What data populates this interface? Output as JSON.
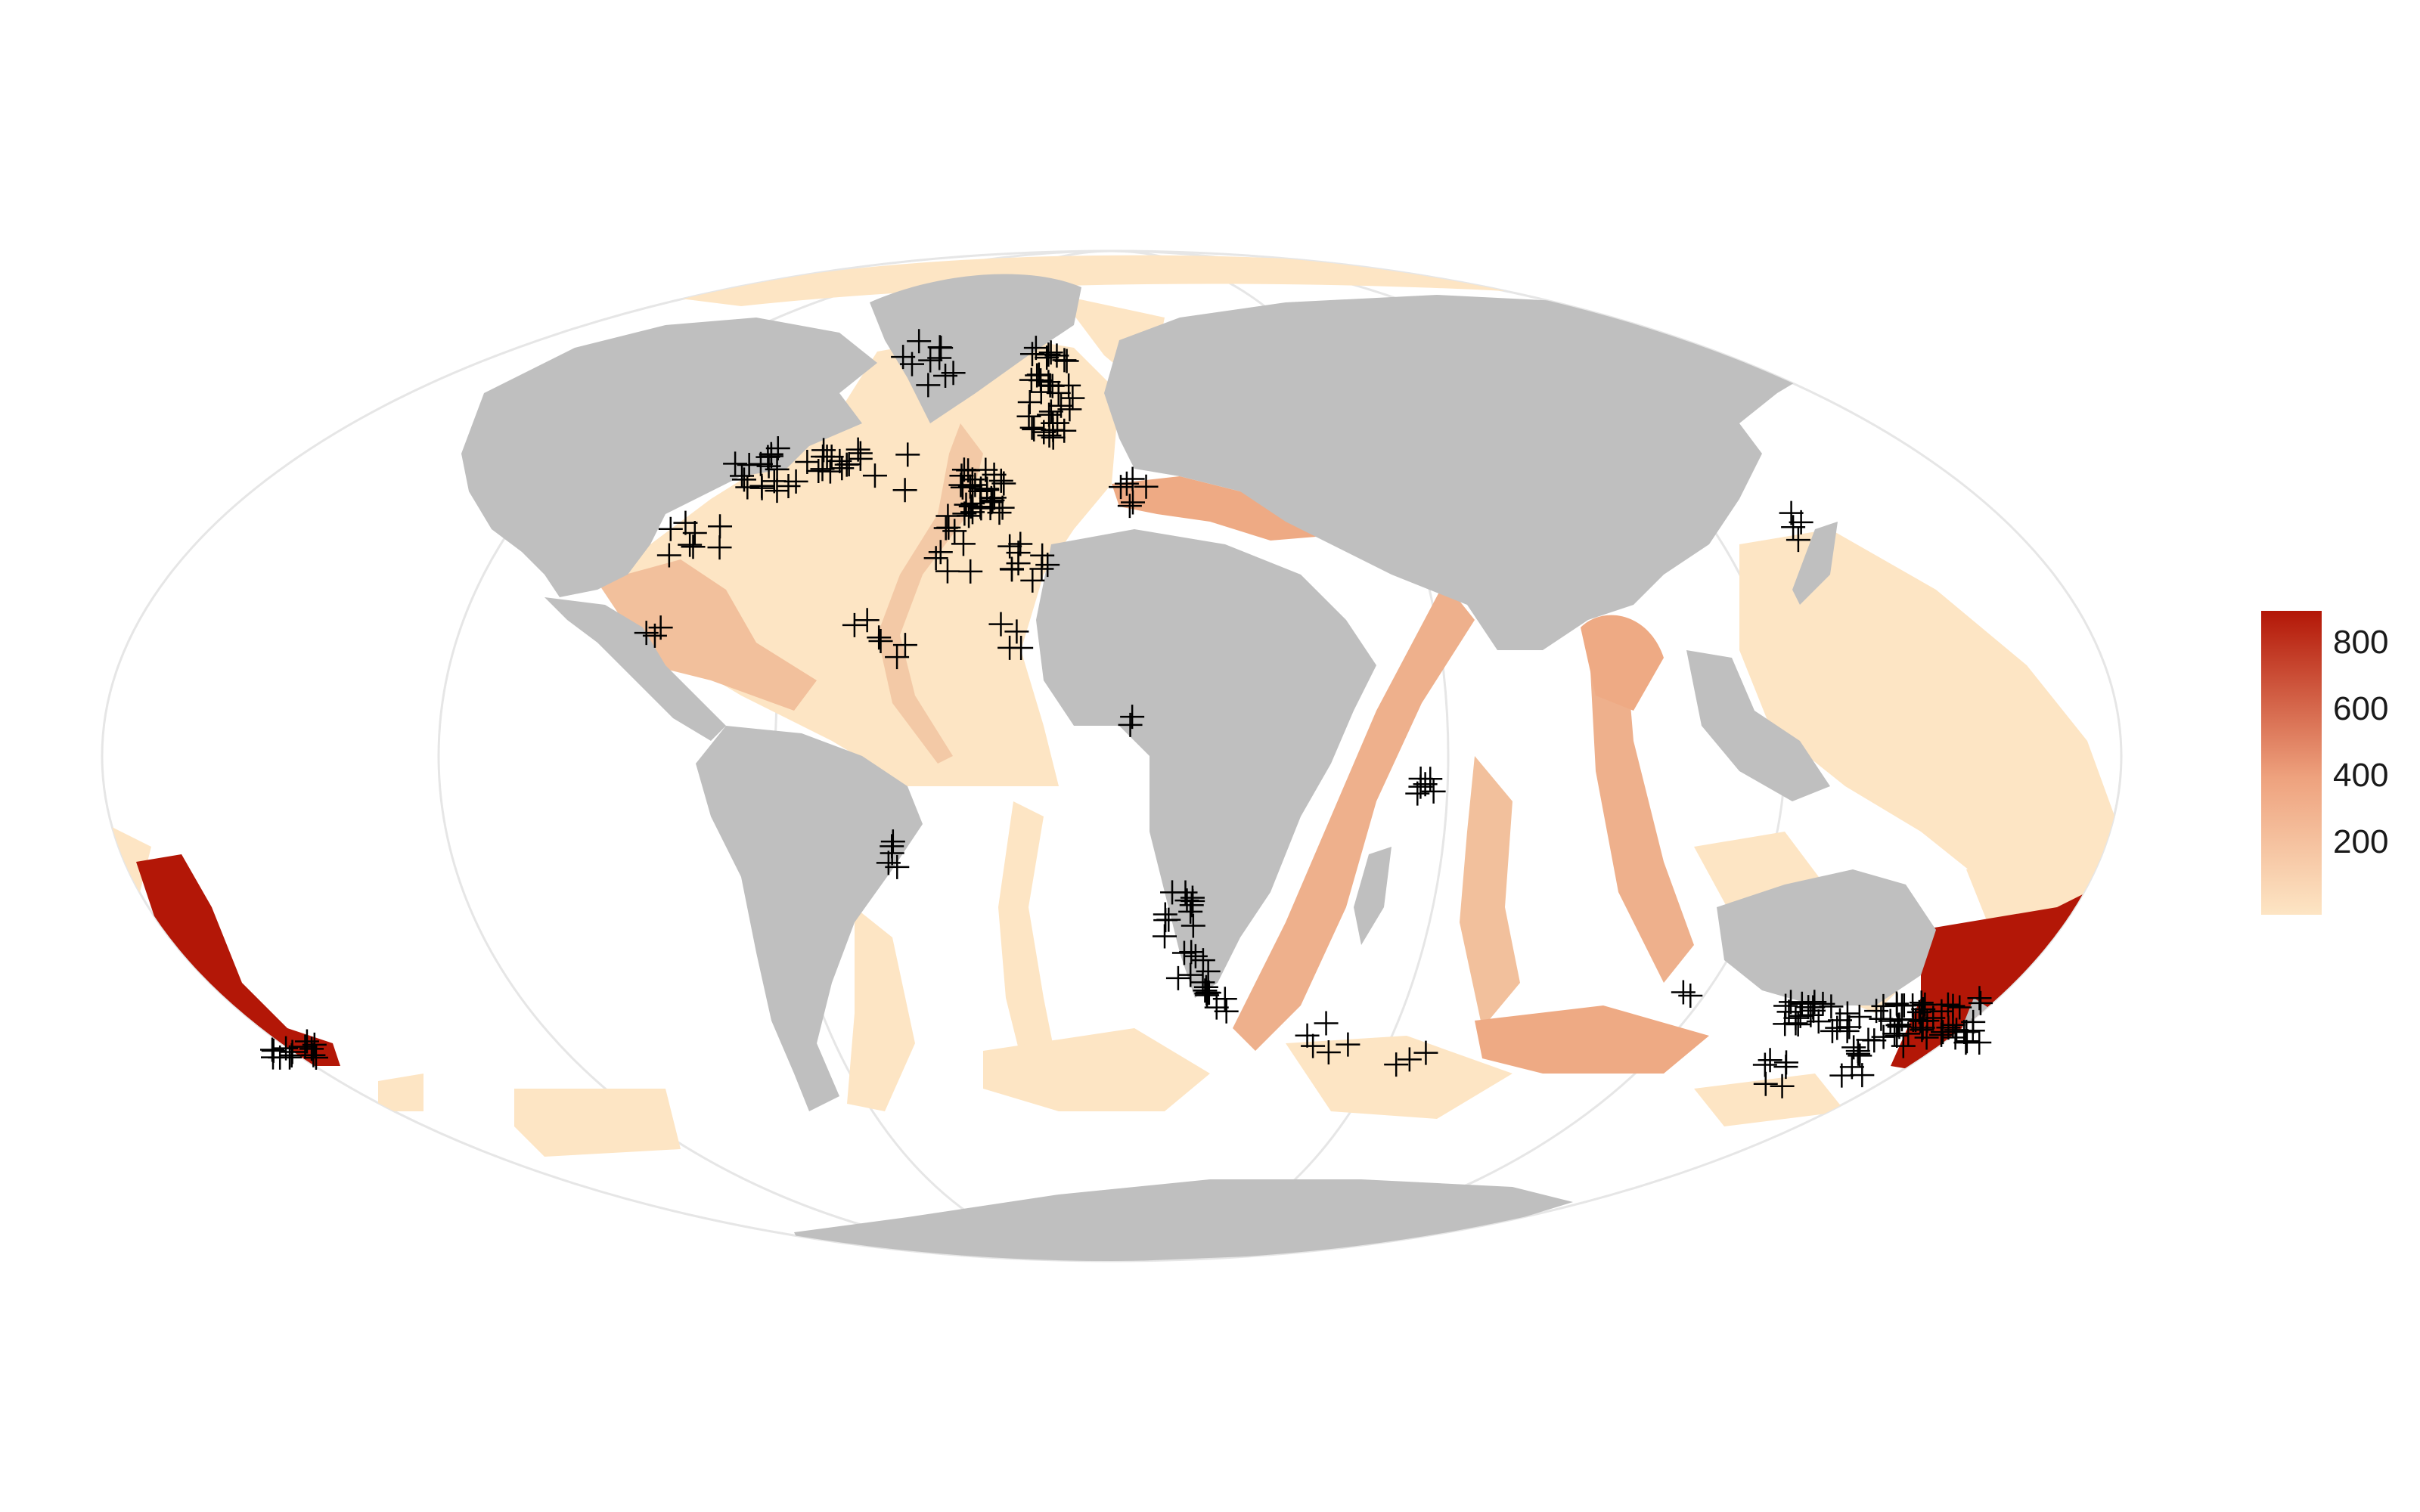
{
  "map": {
    "projection": "mollweide",
    "land_color": "#bfbfbf",
    "ocean_color": "#ffffff",
    "graticule_color": "#e2e2e2",
    "marker": {
      "symbol": "plus",
      "color": "#000000"
    }
  },
  "legend": {
    "ticks": [
      "200",
      "400",
      "600",
      "800"
    ],
    "color_low": "#fde5c4",
    "color_mid": "#eea27e",
    "color_high": "#b31707"
  }
}
